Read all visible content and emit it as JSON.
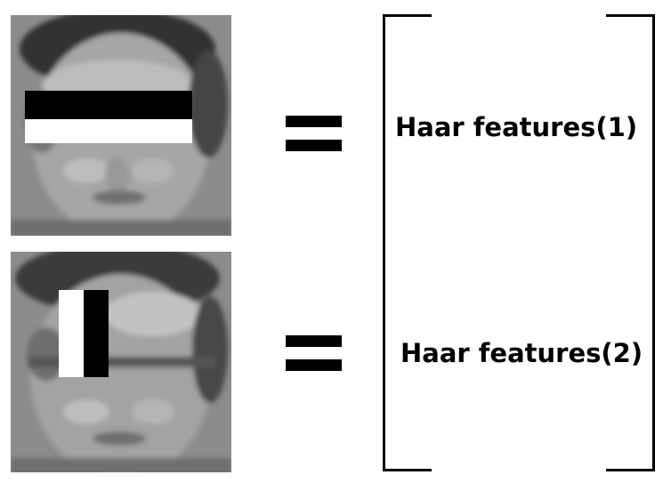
{
  "diagram": {
    "rows": [
      {
        "id": "row-1",
        "feature_type": "horizontal-edge",
        "equals_symbol": "=",
        "label": "Haar features(1)"
      },
      {
        "id": "row-2",
        "feature_type": "vertical-edge",
        "equals_symbol": "=",
        "label": "Haar features(2)"
      }
    ],
    "colors": {
      "haar_dark": "#000000",
      "haar_light": "#ffffff",
      "face_gray": "#8a8a8a"
    }
  }
}
